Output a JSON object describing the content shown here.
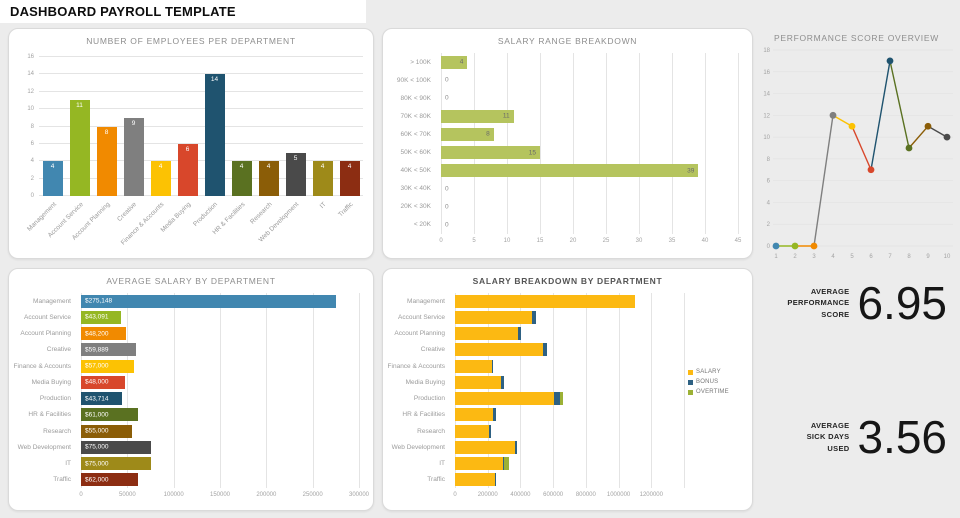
{
  "header": {
    "title": "DASHBOARD PAYROLL TEMPLATE"
  },
  "departments": [
    "Management",
    "Account Service",
    "Account Planning",
    "Creative",
    "Finance & Accounts",
    "Media Buying",
    "Production",
    "HR & Facilities",
    "Research",
    "Web Development",
    "IT",
    "Traffic"
  ],
  "palette": [
    "#4187b0",
    "#95b723",
    "#f18a00",
    "#7f7f7f",
    "#fcc203",
    "#d8472b",
    "#1f536f",
    "#5a7121",
    "#8b5d07",
    "#4a4a4a",
    "#9e8a19",
    "#8c2d12"
  ],
  "chart_data": [
    {
      "id": "employees",
      "type": "bar",
      "title": "NUMBER OF EMPLOYEES PER DEPARTMENT",
      "categories": [
        "Management",
        "Account Service",
        "Account Planning",
        "Creative",
        "Finance & Accounts",
        "Media Buying",
        "Production",
        "HR & Facilities",
        "Research",
        "Web Development",
        "IT",
        "Traffic"
      ],
      "values": [
        4,
        11,
        8,
        9,
        4,
        6,
        14,
        4,
        4,
        5,
        4,
        4
      ],
      "colors": [
        "#4187b0",
        "#95b723",
        "#f18a00",
        "#7f7f7f",
        "#fcc203",
        "#d8472b",
        "#1f536f",
        "#5a7121",
        "#8b5d07",
        "#4a4a4a",
        "#9e8a19",
        "#8c2d12"
      ],
      "ylim": [
        0,
        16
      ],
      "ytick": 2,
      "grid": true,
      "value_labels": "inside-top"
    },
    {
      "id": "salary_range",
      "type": "bar-horizontal",
      "title": "SALARY RANGE BREAKDOWN",
      "categories": [
        "> 100K",
        "90K < 100K",
        "80K < 90K",
        "70K < 80K",
        "60K < 70K",
        "50K < 60K",
        "40K < 50K",
        "30K < 40K",
        "20K < 30K",
        "< 20K"
      ],
      "values": [
        4,
        0,
        0,
        11,
        8,
        15,
        39,
        0,
        0,
        0
      ],
      "bar_color": "#b5c45e",
      "xlim": [
        0,
        45
      ],
      "xtick": 5,
      "grid": true,
      "value_labels": "inside-right"
    },
    {
      "id": "performance",
      "type": "line",
      "title": "PERFORMANCE SCORE OVERVIEW",
      "x": [
        1,
        2,
        3,
        4,
        5,
        6,
        7,
        8,
        9,
        10
      ],
      "values": [
        0,
        0,
        0,
        12,
        11,
        7,
        17,
        9,
        11,
        10
      ],
      "point_colors": [
        "#4187b0",
        "#95b723",
        "#f18a00",
        "#7f7f7f",
        "#fcc203",
        "#d8472b",
        "#1f536f",
        "#5a7121",
        "#8b5d07",
        "#4a4a4a"
      ],
      "ylim": [
        0,
        18
      ],
      "ytick": 2,
      "grid": true,
      "segment_color_rule": "destination-point"
    },
    {
      "id": "avg_salary",
      "type": "bar-horizontal",
      "title": "AVERAGE SALARY BY DEPARTMENT",
      "categories": [
        "Management",
        "Account Service",
        "Account Planning",
        "Creative",
        "Finance & Accounts",
        "Media Buying",
        "Production",
        "HR & Facilities",
        "Research",
        "Web Development",
        "IT",
        "Traffic"
      ],
      "values": [
        275148,
        43091,
        48200,
        59889,
        57000,
        48000,
        43714,
        61000,
        55000,
        75000,
        75000,
        62000
      ],
      "labels": [
        "$275,148",
        "$43,091",
        "$48,200",
        "$59,889",
        "$57,000",
        "$48,000",
        "$43,714",
        "$61,000",
        "$55,000",
        "$75,000",
        "$75,000",
        "$62,000"
      ],
      "colors": [
        "#4187b0",
        "#95b723",
        "#f18a00",
        "#7f7f7f",
        "#fcc203",
        "#d8472b",
        "#1f536f",
        "#5a7121",
        "#8b5d07",
        "#4a4a4a",
        "#9e8a19",
        "#8c2d12"
      ],
      "xlim": [
        0,
        300000
      ],
      "xtick": 50000,
      "grid": true,
      "value_labels": "inside-left"
    },
    {
      "id": "salary_breakdown",
      "type": "stacked-bar-horizontal",
      "title": "SALARY BREAKDOWN BY DEPARTMENT",
      "categories": [
        "Management",
        "Account Service",
        "Account Planning",
        "Creative",
        "Finance & Accounts",
        "Media Buying",
        "Production",
        "HR & Facilities",
        "Research",
        "Web Development",
        "IT",
        "Traffic"
      ],
      "series": [
        {
          "name": "SALARY",
          "color": "#fcb912",
          "values": [
            1100000,
            470000,
            385000,
            540000,
            225000,
            283000,
            605000,
            235000,
            210000,
            368000,
            295000,
            242000
          ]
        },
        {
          "name": "BONUS",
          "color": "#2e6183",
          "values": [
            0,
            28000,
            18000,
            25000,
            6000,
            15000,
            38000,
            14000,
            9000,
            14000,
            5000,
            11000
          ]
        },
        {
          "name": "OVERTIME",
          "color": "#9cb135",
          "values": [
            0,
            0,
            0,
            0,
            0,
            0,
            15000,
            0,
            0,
            0,
            30000,
            0
          ]
        }
      ],
      "xlim": [
        0,
        1400000
      ],
      "xtick": 200000,
      "xtick_label_max": 1200000,
      "grid": true,
      "legend_position": "right"
    }
  ],
  "metrics": [
    {
      "label": "AVERAGE\nPERFORMANCE\nSCORE",
      "value": "6.95"
    },
    {
      "label": "AVERAGE\nSICK DAYS\nUSED",
      "value": "3.56"
    }
  ]
}
